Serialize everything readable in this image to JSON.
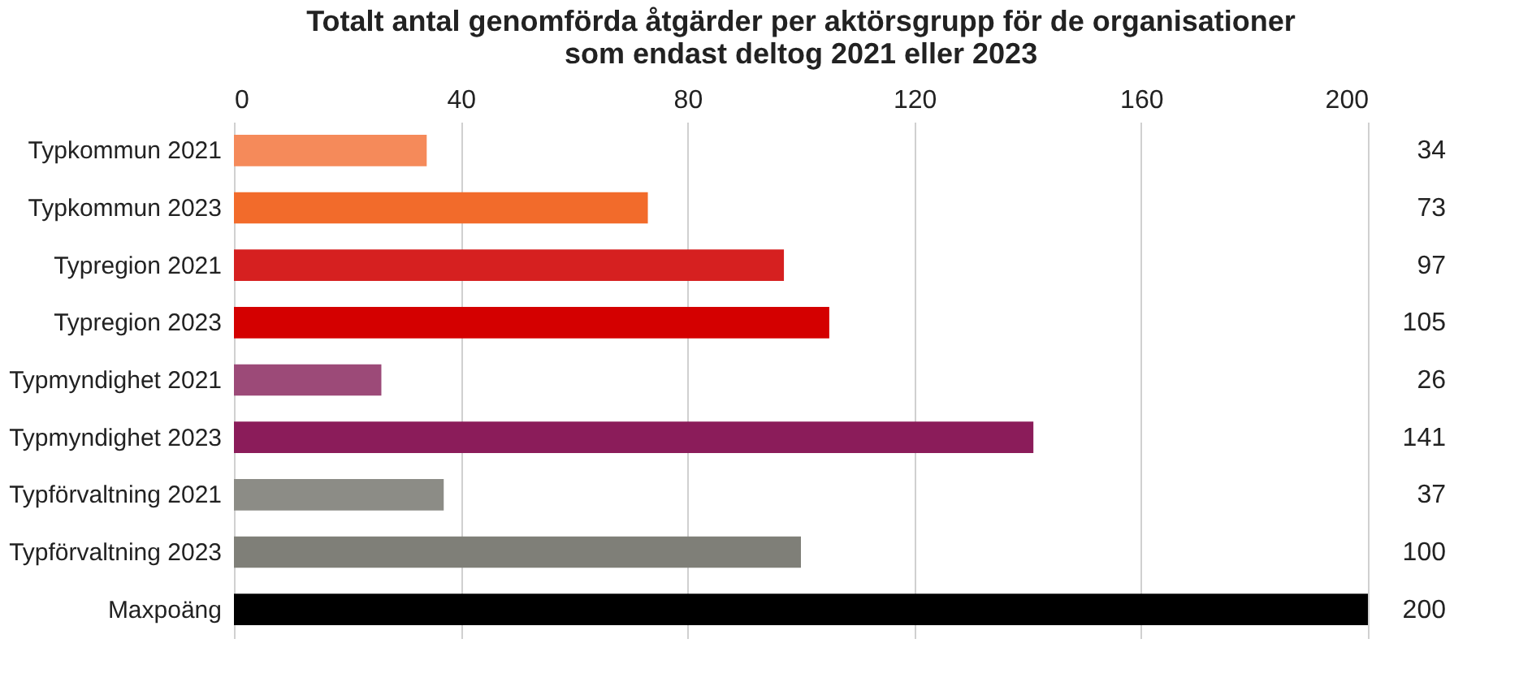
{
  "chart_data": {
    "type": "bar",
    "orientation": "horizontal",
    "title": "Totalt antal genomförda åtgärder per aktörsgrupp för de organisationer\nsom endast deltog 2021 eller 2023",
    "categories": [
      "Typkommun 2021",
      "Typkommun 2023",
      "Typregion 2021",
      "Typregion 2023",
      "Typmyndighet 2021",
      "Typmyndighet 2023",
      "Typförvaltning 2021",
      "Typförvaltning 2023",
      "Maxpoäng"
    ],
    "values": [
      34,
      73,
      97,
      105,
      26,
      141,
      37,
      100,
      200
    ],
    "colors": [
      "#f58a5a",
      "#f26b2b",
      "#d62020",
      "#d40000",
      "#9c4a78",
      "#8b1c5a",
      "#8c8c86",
      "#7f7f78",
      "#000000"
    ],
    "xlim": [
      0,
      200
    ],
    "xticks": [
      0,
      40,
      80,
      120,
      160,
      200
    ],
    "grid": "x",
    "data_labels": true
  }
}
